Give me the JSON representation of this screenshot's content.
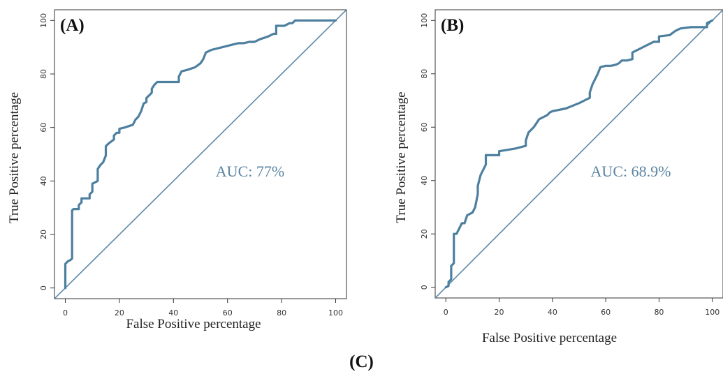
{
  "figure_caption": "(C)",
  "colors": {
    "roc": "#4d7f9f",
    "diagonal": "#5b88a8",
    "auc_text": "#5b85a3"
  },
  "chart_data": [
    {
      "type": "line",
      "panel_label": "(A)",
      "xlabel": "False Positive percentage",
      "ylabel": "True Positive percentage",
      "annotation": "AUC: 77%",
      "xlim": [
        -4,
        104
      ],
      "ylim": [
        -4,
        104
      ],
      "xticks": [
        0,
        20,
        40,
        60,
        80,
        100
      ],
      "yticks": [
        0,
        20,
        40,
        60,
        80,
        100
      ],
      "grid": false,
      "series": [
        {
          "points": [
            [
              0,
              0
            ],
            [
              0,
              9
            ],
            [
              0.5,
              9.5
            ],
            [
              1,
              10
            ],
            [
              2,
              10.5
            ],
            [
              2.5,
              11
            ],
            [
              2.5,
              29
            ],
            [
              3,
              29.5
            ],
            [
              5,
              29.5
            ],
            [
              5,
              31
            ],
            [
              6,
              32
            ],
            [
              6,
              33.5
            ],
            [
              9,
              33.5
            ],
            [
              9,
              35
            ],
            [
              10,
              36
            ],
            [
              10,
              39
            ],
            [
              11,
              39.5
            ],
            [
              12,
              40
            ],
            [
              12,
              44.5
            ],
            [
              13,
              46
            ],
            [
              14,
              47
            ],
            [
              15,
              49.5
            ],
            [
              15,
              53
            ],
            [
              16,
              54
            ],
            [
              18,
              55.5
            ],
            [
              18,
              57
            ],
            [
              19,
              58
            ],
            [
              20,
              58
            ],
            [
              20,
              59.5
            ],
            [
              22,
              60
            ],
            [
              25,
              61
            ],
            [
              26,
              63
            ],
            [
              27,
              64
            ],
            [
              28,
              66
            ],
            [
              29,
              69
            ],
            [
              30,
              69.5
            ],
            [
              30,
              71
            ],
            [
              31,
              72
            ],
            [
              32,
              73
            ],
            [
              32,
              74.5
            ],
            [
              33,
              76
            ],
            [
              34,
              77
            ],
            [
              37,
              77
            ],
            [
              42,
              77
            ],
            [
              42,
              79
            ],
            [
              43,
              81
            ],
            [
              45,
              81.5
            ],
            [
              48,
              82.5
            ],
            [
              50,
              84
            ],
            [
              51,
              85.5
            ],
            [
              52,
              88
            ],
            [
              54,
              89
            ],
            [
              58,
              90
            ],
            [
              62,
              91
            ],
            [
              64,
              91.5
            ],
            [
              66,
              91.5
            ],
            [
              68,
              92
            ],
            [
              70,
              92
            ],
            [
              72,
              93
            ],
            [
              75,
              94
            ],
            [
              77,
              95
            ],
            [
              78,
              95
            ],
            [
              78,
              98
            ],
            [
              81,
              98
            ],
            [
              82,
              98.5
            ],
            [
              83,
              99
            ],
            [
              84,
              99
            ],
            [
              85,
              100
            ],
            [
              100,
              100
            ]
          ]
        },
        {
          "name": "",
          "points": [
            [
              -4,
              -4
            ],
            [
              104,
              104
            ]
          ]
        }
      ]
    },
    {
      "type": "line",
      "panel_label": "(B)",
      "xlabel": "False Positive percentage",
      "ylabel": "True Positive percentage",
      "annotation": "AUC: 68.9%",
      "xlim": [
        -4,
        104
      ],
      "ylim": [
        -4,
        104
      ],
      "xticks": [
        0,
        20,
        40,
        60,
        80,
        100
      ],
      "yticks": [
        0,
        20,
        40,
        60,
        80,
        100
      ],
      "grid": false,
      "series": [
        {
          "points": [
            [
              0,
              0
            ],
            [
              1,
              0.5
            ],
            [
              1,
              2
            ],
            [
              2,
              3
            ],
            [
              2,
              8
            ],
            [
              3,
              9
            ],
            [
              3,
              20
            ],
            [
              4,
              20
            ],
            [
              5,
              22
            ],
            [
              6,
              24
            ],
            [
              7,
              24
            ],
            [
              8,
              27
            ],
            [
              10,
              28
            ],
            [
              11,
              30
            ],
            [
              12,
              35
            ],
            [
              12,
              38
            ],
            [
              13,
              42
            ],
            [
              14,
              44
            ],
            [
              15,
              46
            ],
            [
              15,
              49.5
            ],
            [
              20,
              49.5
            ],
            [
              20,
              51
            ],
            [
              23,
              51.5
            ],
            [
              26,
              52
            ],
            [
              28,
              52.5
            ],
            [
              30,
              53
            ],
            [
              30,
              55
            ],
            [
              31,
              58
            ],
            [
              33,
              60
            ],
            [
              35,
              63
            ],
            [
              37,
              64
            ],
            [
              38,
              64.5
            ],
            [
              39,
              65.5
            ],
            [
              40,
              66
            ],
            [
              45,
              67
            ],
            [
              50,
              69
            ],
            [
              52,
              70
            ],
            [
              54,
              71
            ],
            [
              54,
              73
            ],
            [
              55,
              76
            ],
            [
              56,
              78
            ],
            [
              57,
              80
            ],
            [
              58,
              82.5
            ],
            [
              60,
              83
            ],
            [
              62,
              83
            ],
            [
              64,
              83.5
            ],
            [
              65,
              84
            ],
            [
              66,
              85
            ],
            [
              68,
              85
            ],
            [
              70,
              85.5
            ],
            [
              70,
              88
            ],
            [
              72,
              89
            ],
            [
              74,
              90
            ],
            [
              76,
              91
            ],
            [
              78,
              92
            ],
            [
              80,
              92
            ],
            [
              80,
              94
            ],
            [
              84,
              94.5
            ],
            [
              86,
              96
            ],
            [
              88,
              97
            ],
            [
              92,
              97.5
            ],
            [
              96,
              97.5
            ],
            [
              98,
              97.5
            ],
            [
              98,
              99
            ],
            [
              99,
              99.5
            ],
            [
              100,
              100
            ]
          ]
        },
        {
          "name": "",
          "points": [
            [
              -4,
              -4
            ],
            [
              104,
              104
            ]
          ]
        }
      ]
    }
  ]
}
